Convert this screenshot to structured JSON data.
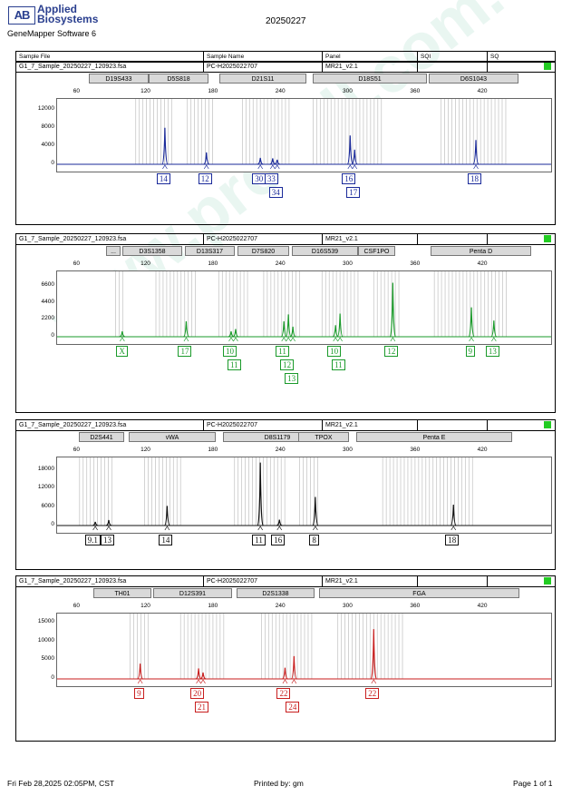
{
  "header": {
    "logo_mark": "AB",
    "logo_line1": "Applied",
    "logo_line2": "Biosystems",
    "software": "GeneMapper Software 6",
    "date": "20250227",
    "columns": [
      "Sample File",
      "Sample Name",
      "Panel",
      "SQI",
      "SQ"
    ]
  },
  "watermark": "www.procell.com.cn",
  "panels": [
    {
      "id": "blue",
      "color": "#1a2a9a",
      "sample_file": "G1_7_Sample_20250227_120923.fsa",
      "sample_name": "PC-H2025022707",
      "panel": "MR21_v2.1",
      "loci": [
        "D19S433",
        "D5S818",
        "D21S11",
        "D18S51",
        "D6S1043"
      ],
      "x_ticks": [
        "60",
        "120",
        "180",
        "240",
        "300",
        "360",
        "420"
      ],
      "y_ticks": [
        "12000",
        "8000",
        "4000",
        "0"
      ],
      "peaks": [
        {
          "allele": "14",
          "size": 136,
          "height": 8000
        },
        {
          "allele": "12",
          "size": 173,
          "height": 2600
        },
        {
          "allele": "30",
          "size": 221,
          "height": 1400
        },
        {
          "allele": "33",
          "size": 232,
          "height": 1300
        },
        {
          "allele": "34",
          "size": 236,
          "height": 1000
        },
        {
          "allele": "16",
          "size": 301,
          "height": 6300
        },
        {
          "allele": "17",
          "size": 305,
          "height": 3200
        },
        {
          "allele": "18",
          "size": 413,
          "height": 5300
        }
      ]
    },
    {
      "id": "green",
      "color": "#1a9a2a",
      "sample_file": "G1_7_Sample_20250227_120923.fsa",
      "sample_name": "PC-H2025022707",
      "panel": "MR21_v2.1",
      "loci": [
        "...",
        "D3S1358",
        "D13S317",
        "D7S820",
        "D16S539",
        "CSF1PO",
        "Penta D"
      ],
      "x_ticks": [
        "60",
        "120",
        "180",
        "240",
        "300",
        "360",
        "420"
      ],
      "y_ticks": [
        "6600",
        "4400",
        "2200",
        "0"
      ],
      "peaks": [
        {
          "allele": "X",
          "size": 98,
          "height": 700
        },
        {
          "allele": "17",
          "size": 155,
          "height": 2000
        },
        {
          "allele": "10",
          "size": 195,
          "height": 700
        },
        {
          "allele": "11",
          "size": 199,
          "height": 1000
        },
        {
          "allele": "11",
          "size": 242,
          "height": 2000
        },
        {
          "allele": "12",
          "size": 246,
          "height": 2900
        },
        {
          "allele": "13",
          "size": 250,
          "height": 1300
        },
        {
          "allele": "10",
          "size": 288,
          "height": 1500
        },
        {
          "allele": "11",
          "size": 292,
          "height": 3000
        },
        {
          "allele": "12",
          "size": 339,
          "height": 7000
        },
        {
          "allele": "9",
          "size": 409,
          "height": 3800
        },
        {
          "allele": "13",
          "size": 429,
          "height": 2100
        }
      ]
    },
    {
      "id": "black",
      "color": "#111111",
      "sample_file": "G1_7_Sample_20250227_120923.fsa",
      "sample_name": "PC-H2025022707",
      "panel": "MR21_v2.1",
      "loci": [
        "D2S441",
        "vWA",
        "D8S1179",
        "TPOX",
        "Penta E"
      ],
      "x_ticks": [
        "60",
        "120",
        "180",
        "240",
        "300",
        "360",
        "420"
      ],
      "y_ticks": [
        "18000",
        "12000",
        "6000",
        "0"
      ],
      "peaks": [
        {
          "allele": "9.1",
          "size": 74,
          "height": 1200
        },
        {
          "allele": "13",
          "size": 86,
          "height": 1800
        },
        {
          "allele": "14",
          "size": 138,
          "height": 6400
        },
        {
          "allele": "11",
          "size": 221,
          "height": 20500
        },
        {
          "allele": "16",
          "size": 238,
          "height": 1900
        },
        {
          "allele": "8",
          "size": 270,
          "height": 9300
        },
        {
          "allele": "18",
          "size": 393,
          "height": 6800
        }
      ]
    },
    {
      "id": "red",
      "color": "#c81e1e",
      "sample_file": "G1_7_Sample_20250227_120923.fsa",
      "sample_name": "PC-H2025022707",
      "panel": "MR21_v2.1",
      "loci": [
        "TH01",
        "D12S391",
        "D2S1338",
        "FGA"
      ],
      "x_ticks": [
        "60",
        "120",
        "180",
        "240",
        "300",
        "360",
        "420"
      ],
      "y_ticks": [
        "15000",
        "10000",
        "5000",
        "0"
      ],
      "peaks": [
        {
          "allele": "9",
          "size": 114,
          "height": 4100
        },
        {
          "allele": "20",
          "size": 166,
          "height": 2800
        },
        {
          "allele": "21",
          "size": 170,
          "height": 1700
        },
        {
          "allele": "22",
          "size": 243,
          "height": 3000
        },
        {
          "allele": "24",
          "size": 251,
          "height": 6100
        },
        {
          "allele": "22",
          "size": 322,
          "height": 13300
        }
      ]
    }
  ],
  "footer": {
    "timestamp": "Fri Feb 28,2025 02:05PM, CST",
    "printed_by": "Printed by: gm",
    "page": "Page 1 of 1"
  }
}
